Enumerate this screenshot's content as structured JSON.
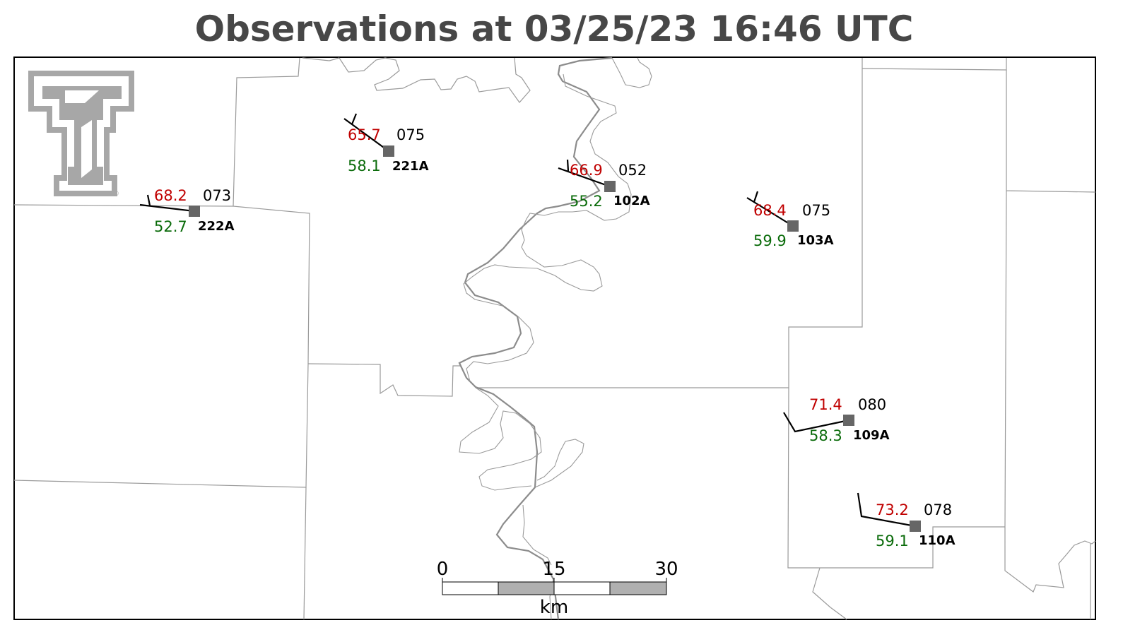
{
  "title": "Observations at 03/25/23 16:46 UTC",
  "colors": {
    "temperature": "#c00000",
    "dewpoint": "#0a6b0a",
    "station_marker": "#666666",
    "logo": "#a7a7a7",
    "title": "#474747"
  },
  "logo": {
    "icon": "texas-tech-double-t-logo",
    "registered_mark": "®"
  },
  "stations": [
    {
      "id": "222A",
      "temp": "68.2",
      "dewpoint": "52.7",
      "pressure": "073"
    },
    {
      "id": "221A",
      "temp": "65.7",
      "dewpoint": "58.1",
      "pressure": "075"
    },
    {
      "id": "102A",
      "temp": "66.9",
      "dewpoint": "55.2",
      "pressure": "052"
    },
    {
      "id": "103A",
      "temp": "68.4",
      "dewpoint": "59.9",
      "pressure": "075"
    },
    {
      "id": "109A",
      "temp": "71.4",
      "dewpoint": "58.3",
      "pressure": "080"
    },
    {
      "id": "110A",
      "temp": "73.2",
      "dewpoint": "59.1",
      "pressure": "078"
    }
  ],
  "scale_bar": {
    "ticks": [
      "0",
      "15",
      "30"
    ],
    "unit": "km"
  }
}
